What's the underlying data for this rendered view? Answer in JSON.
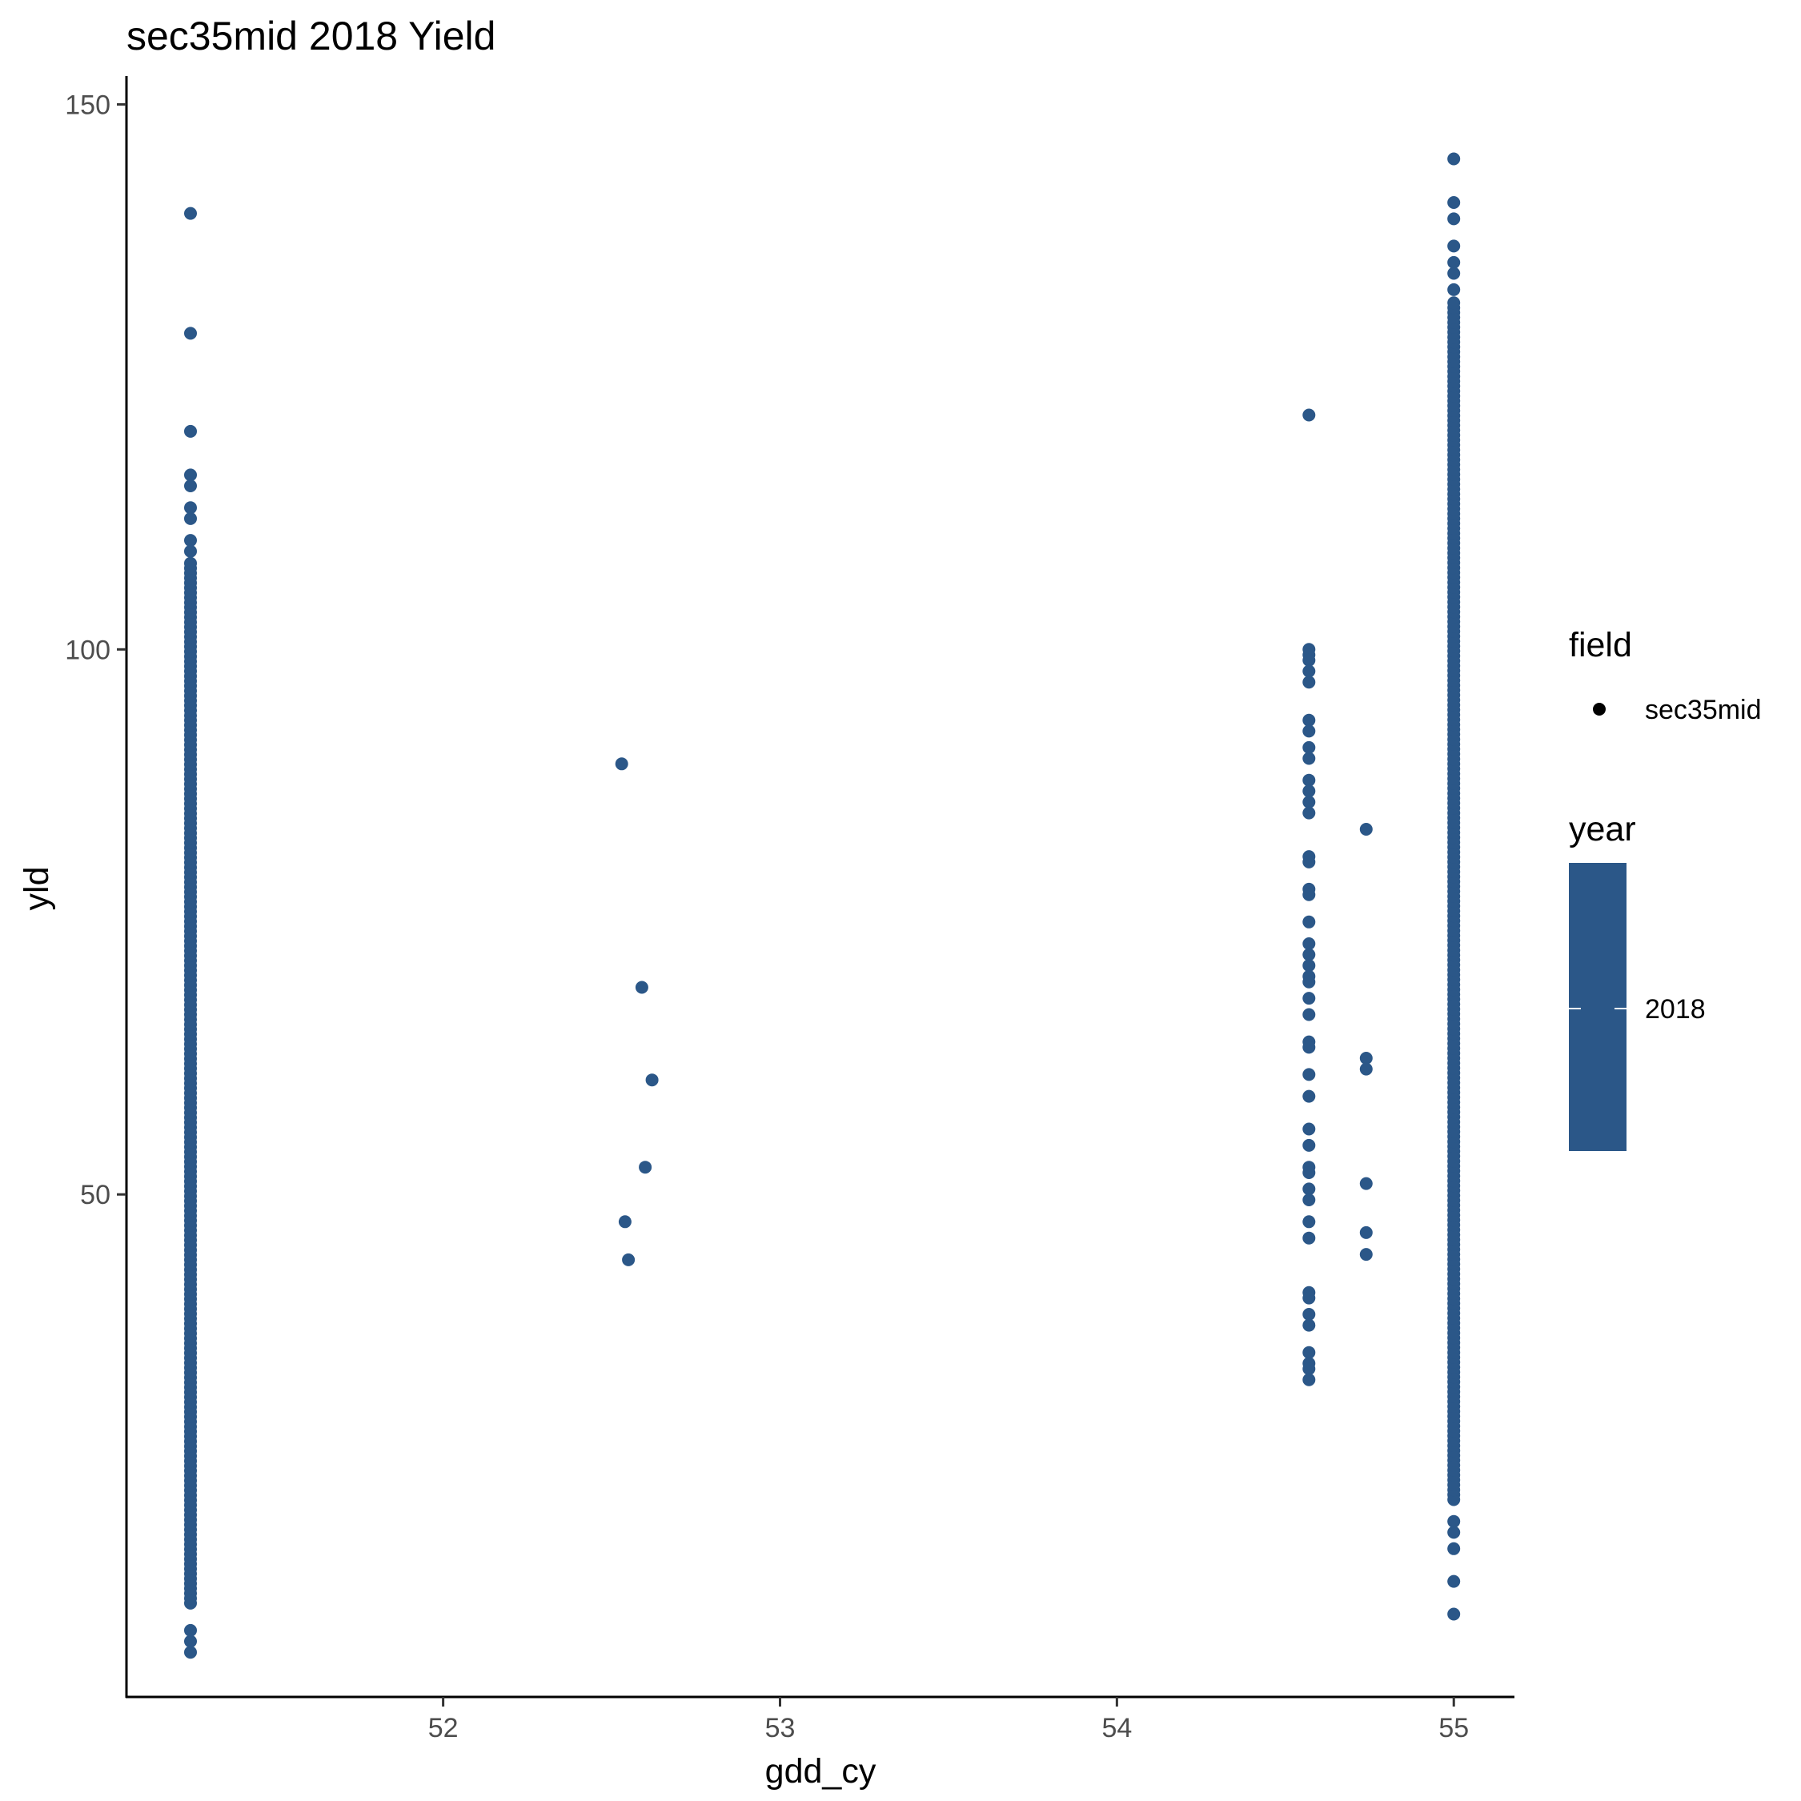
{
  "chart_data": {
    "type": "scatter",
    "title": "sec35mid 2018 Yield",
    "xlabel": "gdd_cy",
    "ylabel": "yld",
    "xlim": [
      51.06,
      55.18
    ],
    "ylim": [
      3.9,
      152.6
    ],
    "x_ticks": [
      "52",
      "53",
      "54",
      "55"
    ],
    "y_ticks": [
      "50",
      "100",
      "150"
    ],
    "grid": false,
    "point_color": "#2b5788",
    "series": [
      {
        "name": "sec35mid",
        "points": [
          [
            51.25,
            140
          ],
          [
            51.25,
            129
          ],
          [
            51.25,
            120
          ],
          [
            51.25,
            116
          ],
          [
            51.25,
            115
          ],
          [
            51.25,
            113
          ],
          [
            51.25,
            112
          ],
          [
            51.25,
            110
          ],
          [
            51.25,
            109
          ],
          [
            51.25,
            8
          ],
          [
            51.25,
            9
          ],
          [
            51.25,
            10
          ],
          [
            52.53,
            89.5
          ],
          [
            52.59,
            69
          ],
          [
            52.62,
            60.5
          ],
          [
            52.6,
            52.5
          ],
          [
            52.54,
            47.5
          ],
          [
            52.55,
            44
          ],
          [
            54.57,
            121.5
          ],
          [
            54.57,
            100
          ],
          [
            54.57,
            99.5
          ],
          [
            54.57,
            99
          ],
          [
            54.57,
            98
          ],
          [
            54.57,
            97
          ],
          [
            54.57,
            93.5
          ],
          [
            54.57,
            92.5
          ],
          [
            54.57,
            91
          ],
          [
            54.57,
            90
          ],
          [
            54.57,
            88
          ],
          [
            54.57,
            87
          ],
          [
            54.57,
            86
          ],
          [
            54.57,
            85
          ],
          [
            54.57,
            81
          ],
          [
            54.57,
            80.5
          ],
          [
            54.57,
            78
          ],
          [
            54.57,
            77.5
          ],
          [
            54.57,
            75
          ],
          [
            54.57,
            73
          ],
          [
            54.57,
            72
          ],
          [
            54.57,
            71
          ],
          [
            54.57,
            70
          ],
          [
            54.57,
            69.5
          ],
          [
            54.57,
            68
          ],
          [
            54.57,
            66.5
          ],
          [
            54.57,
            64
          ],
          [
            54.57,
            63.5
          ],
          [
            54.57,
            61
          ],
          [
            54.57,
            59
          ],
          [
            54.57,
            56
          ],
          [
            54.57,
            54.5
          ],
          [
            54.57,
            52.5
          ],
          [
            54.57,
            52
          ],
          [
            54.57,
            50.5
          ],
          [
            54.57,
            49.5
          ],
          [
            54.57,
            47.5
          ],
          [
            54.57,
            46
          ],
          [
            54.57,
            41
          ],
          [
            54.57,
            40.5
          ],
          [
            54.57,
            39
          ],
          [
            54.57,
            38
          ],
          [
            54.57,
            35.5
          ],
          [
            54.57,
            34.5
          ],
          [
            54.57,
            34
          ],
          [
            54.57,
            33
          ],
          [
            54.74,
            83.5
          ],
          [
            54.74,
            62.5
          ],
          [
            54.74,
            61.5
          ],
          [
            54.74,
            51
          ],
          [
            54.74,
            46.5
          ],
          [
            54.74,
            44.5
          ],
          [
            55.0,
            145
          ],
          [
            55.0,
            141
          ],
          [
            55.0,
            139.5
          ],
          [
            55.0,
            137
          ],
          [
            55.0,
            135.5
          ],
          [
            55.0,
            134.5
          ],
          [
            55.0,
            133
          ],
          [
            55.0,
            20
          ],
          [
            55.0,
            19
          ],
          [
            55.0,
            17.5
          ],
          [
            55.0,
            14.5
          ],
          [
            55.0,
            11.5
          ]
        ],
        "dense_ranges": [
          {
            "x": 51.25,
            "y_min": 12.5,
            "y_max": 108
          },
          {
            "x": 55.0,
            "y_min": 22,
            "y_max": 132
          }
        ]
      }
    ],
    "legend": {
      "position": "right",
      "field_title": "field",
      "field_label": "sec35mid",
      "year_title": "year",
      "year_label": "2018"
    }
  }
}
